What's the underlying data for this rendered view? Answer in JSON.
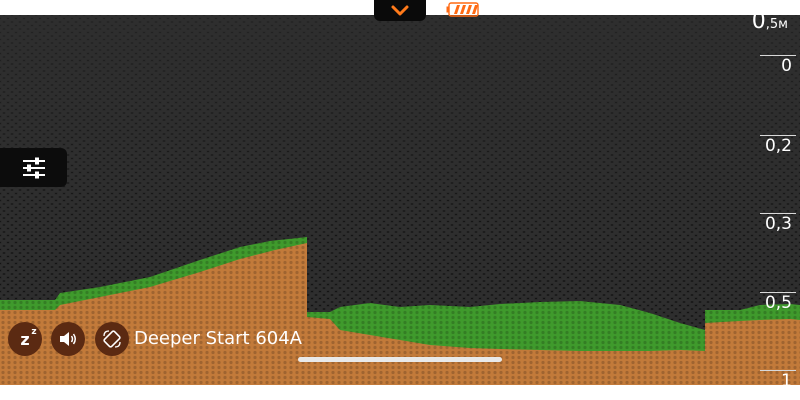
{
  "depth": {
    "value": "0",
    "unit": ",5м"
  },
  "scale": [
    {
      "label": "0",
      "depth": 0
    },
    {
      "label": "0,2",
      "depth": 0.2
    },
    {
      "label": "0,3",
      "depth": 0.3
    },
    {
      "label": "0,5",
      "depth": 0.5
    },
    {
      "label": "1",
      "depth": 1
    }
  ],
  "device": {
    "name": "Deeper Start 604A"
  },
  "battery": {
    "level": 0.8,
    "color": "#ff6a13"
  },
  "colors": {
    "accent": "#ff7a1a",
    "bottom": "#c27a3a",
    "vegetation": "#3f9a2c",
    "button": "#5b2a12"
  },
  "icons": {
    "top_toggle": "chevron-down-icon",
    "battery": "battery-icon",
    "settings": "sliders-icon",
    "sleep": "sleep-icon",
    "sound": "speaker-icon",
    "rotate": "rotate-screen-icon"
  }
}
